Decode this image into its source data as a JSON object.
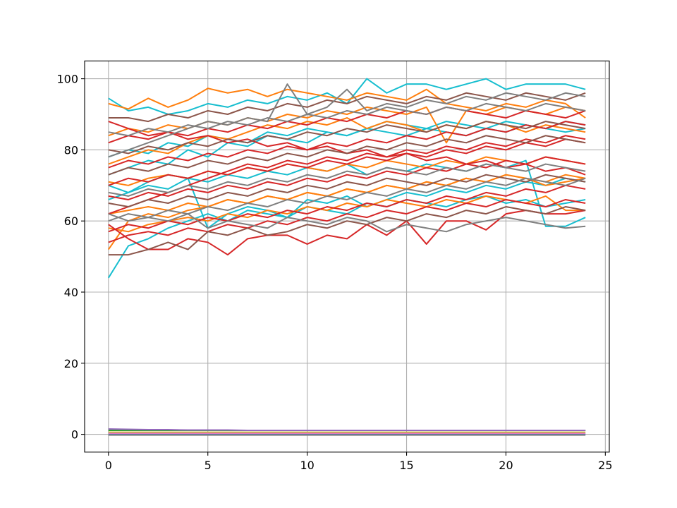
{
  "chart_data": {
    "type": "line",
    "title": "",
    "xlabel": "",
    "ylabel": "",
    "xlim": [
      -1.2,
      25.2
    ],
    "ylim": [
      -5,
      105
    ],
    "x_ticks": [
      0,
      5,
      10,
      15,
      20,
      25
    ],
    "y_ticks": [
      0,
      20,
      40,
      60,
      80,
      100
    ],
    "grid": true,
    "legend": "none",
    "x": [
      0,
      1,
      2,
      3,
      4,
      5,
      6,
      7,
      8,
      9,
      10,
      11,
      12,
      13,
      14,
      15,
      16,
      17,
      18,
      19,
      20,
      21,
      22,
      23,
      24
    ],
    "series": [
      {
        "color": "#17becf",
        "values": [
          44,
          53,
          55,
          58,
          60,
          62,
          60,
          63,
          62,
          61,
          64,
          63,
          62,
          65,
          64,
          66,
          65,
          64,
          66,
          67,
          65,
          66,
          64,
          65,
          66
        ]
      },
      {
        "color": "#17becf",
        "values": [
          94.5,
          91,
          92,
          90,
          91,
          93,
          92,
          94,
          93,
          95,
          94,
          96,
          93,
          100,
          96,
          98.5,
          98.5,
          97,
          98.5,
          100,
          97,
          98.5,
          98.5,
          98.5,
          97
        ]
      },
      {
        "color": "#17becf",
        "values": [
          73,
          75,
          77,
          76,
          80,
          78,
          82,
          81,
          84,
          83,
          82,
          85,
          84,
          86,
          85,
          84,
          86,
          85,
          84,
          86,
          85,
          87,
          86,
          85,
          86
        ]
      },
      {
        "color": "#17becf",
        "values": [
          66,
          68,
          70,
          69,
          72,
          71,
          73,
          72,
          74,
          73,
          75,
          74,
          76,
          73,
          75,
          74,
          76,
          75,
          74,
          76,
          75,
          77,
          58.5,
          58.5,
          61
        ]
      },
      {
        "color": "#17becf",
        "values": [
          78,
          80,
          79,
          82,
          81,
          84,
          83,
          82,
          85,
          84,
          86,
          85,
          84,
          86,
          88,
          87,
          86,
          88,
          87,
          86,
          88,
          87,
          86,
          88,
          87
        ]
      },
      {
        "color": "#17becf",
        "values": [
          70,
          68,
          71,
          73,
          72,
          58,
          62,
          64,
          63,
          61,
          66,
          65,
          67,
          64,
          66,
          68,
          67,
          69,
          68,
          70,
          69,
          71,
          70,
          72,
          71
        ]
      },
      {
        "color": "#ff7f0e",
        "values": [
          93,
          91.5,
          94.5,
          92,
          94,
          97.3,
          96,
          97,
          95,
          97,
          96,
          95,
          94,
          96,
          95,
          94,
          97,
          93,
          92,
          91,
          93,
          92,
          94,
          93,
          89
        ]
      },
      {
        "color": "#ff7f0e",
        "values": [
          76,
          78,
          80,
          79,
          82,
          84,
          83,
          85,
          87,
          86,
          88,
          87,
          89,
          86,
          88,
          87,
          85,
          87,
          86,
          88,
          87,
          85,
          87,
          86,
          85
        ]
      },
      {
        "color": "#ff7f0e",
        "values": [
          52,
          60,
          62,
          61,
          63,
          64,
          66,
          65,
          67,
          66,
          68,
          67,
          69,
          68,
          70,
          69,
          71,
          70,
          72,
          71,
          73,
          72,
          70,
          71,
          72
        ]
      },
      {
        "color": "#ff7f0e",
        "values": [
          62,
          63,
          64,
          63,
          65,
          64,
          66,
          65,
          67,
          66,
          68,
          67,
          69,
          68,
          70,
          69,
          71,
          70,
          72,
          71,
          73,
          72,
          71,
          73,
          72
        ]
      },
      {
        "color": "#ff7f0e",
        "values": [
          84,
          86,
          85,
          87,
          86,
          88,
          87,
          89,
          88,
          90,
          89,
          91,
          90,
          92,
          91,
          90,
          92,
          82,
          91,
          90,
          92,
          91,
          90,
          92,
          91
        ]
      },
      {
        "color": "#ff7f0e",
        "values": [
          58,
          57,
          59,
          60,
          61,
          60,
          62,
          61,
          63,
          62,
          64,
          63,
          65,
          64,
          66,
          65,
          64,
          66,
          65,
          67,
          66,
          65,
          67,
          63,
          63
        ]
      },
      {
        "color": "#ff7f0e",
        "values": [
          71,
          70,
          72,
          73,
          72,
          74,
          73,
          75,
          74,
          76,
          75,
          74,
          76,
          75,
          77,
          76,
          75,
          77,
          76,
          78,
          77,
          76,
          78,
          77,
          76
        ]
      },
      {
        "color": "#d62728",
        "values": [
          88,
          86,
          84,
          85,
          83,
          84,
          82,
          83,
          81,
          82,
          80,
          81,
          79,
          80,
          78,
          79,
          77,
          78,
          76,
          77,
          75,
          76,
          74,
          75,
          73
        ]
      },
      {
        "color": "#d62728",
        "values": [
          59,
          55,
          52,
          52,
          55,
          54,
          50.5,
          55,
          56,
          56,
          53.5,
          56,
          55,
          59,
          56,
          60,
          53.5,
          60,
          60,
          57.5,
          62,
          63,
          62,
          62,
          63
        ]
      },
      {
        "color": "#d62728",
        "values": [
          54,
          56,
          57,
          56,
          58,
          57,
          59,
          58,
          60,
          59,
          61,
          60,
          62,
          61,
          63,
          62,
          64,
          63,
          65,
          64,
          66,
          65,
          64,
          66,
          65
        ]
      },
      {
        "color": "#d62728",
        "values": [
          62,
          64,
          66,
          68,
          70,
          72,
          74,
          76,
          75,
          77,
          76,
          78,
          77,
          79,
          78,
          80,
          79,
          81,
          80,
          82,
          81,
          83,
          82,
          84,
          83
        ]
      },
      {
        "color": "#d62728",
        "values": [
          82,
          84,
          83,
          85,
          84,
          86,
          85,
          87,
          86,
          88,
          87,
          89,
          88,
          90,
          89,
          91,
          90,
          92,
          91,
          90,
          89,
          91,
          90,
          89,
          91
        ]
      },
      {
        "color": "#d62728",
        "values": [
          67,
          66,
          68,
          67,
          69,
          68,
          70,
          69,
          71,
          70,
          72,
          71,
          73,
          72,
          74,
          73,
          75,
          74,
          76,
          75,
          77,
          76,
          78,
          77,
          76
        ]
      },
      {
        "color": "#d62728",
        "values": [
          75,
          77,
          76,
          78,
          77,
          79,
          78,
          80,
          79,
          81,
          80,
          82,
          81,
          83,
          82,
          84,
          83,
          85,
          84,
          86,
          85,
          87,
          86,
          88,
          87
        ]
      },
      {
        "color": "#d62728",
        "values": [
          70,
          72,
          71,
          73,
          72,
          74,
          73,
          75,
          74,
          76,
          75,
          77,
          76,
          78,
          77,
          79,
          78,
          80,
          79,
          81,
          80,
          82,
          81,
          83,
          82
        ]
      },
      {
        "color": "#d62728",
        "values": [
          57,
          59,
          58,
          60,
          59,
          61,
          60,
          62,
          61,
          63,
          62,
          64,
          63,
          65,
          64,
          66,
          65,
          67,
          66,
          68,
          67,
          69,
          68,
          70,
          69
        ]
      },
      {
        "color": "#8c564b",
        "values": [
          89,
          89,
          88,
          90,
          89,
          91,
          90,
          92,
          91,
          93,
          92,
          94,
          93,
          95,
          94,
          93,
          95,
          94,
          96,
          95,
          94,
          96,
          95,
          94,
          96
        ]
      },
      {
        "color": "#8c564b",
        "values": [
          50.5,
          50.5,
          52,
          54,
          52,
          57,
          56,
          58,
          56,
          57,
          59,
          58,
          60,
          59,
          61,
          60,
          62,
          61,
          63,
          62,
          64,
          63,
          62,
          64,
          63
        ]
      },
      {
        "color": "#8c564b",
        "values": [
          80,
          79,
          81,
          80,
          82,
          81,
          83,
          82,
          84,
          83,
          85,
          84,
          86,
          85,
          87,
          86,
          85,
          87,
          86,
          88,
          87,
          86,
          88,
          87,
          86
        ]
      },
      {
        "color": "#8c564b",
        "values": [
          65,
          64,
          66,
          65,
          67,
          66,
          68,
          67,
          69,
          68,
          70,
          69,
          71,
          70,
          72,
          71,
          70,
          72,
          71,
          73,
          72,
          71,
          73,
          72,
          71
        ]
      },
      {
        "color": "#8c564b",
        "values": [
          73,
          75,
          74,
          76,
          75,
          77,
          76,
          78,
          77,
          79,
          78,
          80,
          79,
          81,
          80,
          82,
          81,
          83,
          82,
          84,
          83,
          82,
          84,
          83,
          82
        ]
      },
      {
        "color": "#7f7f7f",
        "values": [
          78,
          80,
          82,
          84,
          86,
          88,
          87,
          89,
          88,
          98.5,
          90,
          92,
          97,
          91,
          93,
          92,
          94,
          93,
          95,
          94,
          96,
          95,
          94,
          96,
          95
        ]
      },
      {
        "color": "#7f7f7f",
        "values": [
          60,
          62,
          61,
          63,
          62,
          64,
          63,
          65,
          64,
          66,
          65,
          67,
          66,
          68,
          67,
          69,
          68,
          70,
          69,
          71,
          70,
          72,
          71,
          70,
          72
        ]
      },
      {
        "color": "#7f7f7f",
        "values": [
          85,
          84,
          86,
          85,
          87,
          86,
          88,
          87,
          89,
          88,
          90,
          89,
          91,
          90,
          92,
          91,
          90,
          92,
          91,
          93,
          92,
          91,
          93,
          92,
          91
        ]
      },
      {
        "color": "#7f7f7f",
        "values": [
          68,
          67,
          69,
          68,
          70,
          69,
          71,
          70,
          72,
          71,
          73,
          72,
          74,
          73,
          75,
          74,
          73,
          75,
          74,
          76,
          75,
          74,
          76,
          75,
          74
        ]
      },
      {
        "color": "#7f7f7f",
        "values": [
          62,
          60,
          61,
          60,
          62,
          58,
          60,
          59,
          58,
          61,
          60,
          59,
          61,
          60,
          57,
          59,
          58,
          57,
          59,
          60,
          61,
          60,
          59,
          58,
          58.5
        ]
      },
      {
        "color": "#1f77b4",
        "values": [
          0,
          0,
          0,
          0,
          0,
          0,
          0,
          0,
          0,
          0,
          0,
          0,
          0,
          0,
          0,
          0,
          0,
          0,
          0,
          0,
          0,
          0,
          0,
          0,
          0
        ]
      },
      {
        "color": "#2ca02c",
        "values": [
          1.1,
          1.1,
          1.1,
          1.1,
          1.1,
          1.1,
          1.1,
          1.1,
          1.1,
          1.1,
          1.1,
          1.1,
          1.1,
          1.1,
          1.1,
          1.1,
          1.1,
          1.1,
          1.1,
          1.1,
          1.1,
          1.1,
          1.1,
          1.1,
          1.1
        ]
      },
      {
        "color": "#bcbd22",
        "values": [
          0.6,
          0.6,
          0.6,
          0.6,
          0.6,
          0.6,
          0.6,
          0.6,
          0.6,
          0.6,
          0.6,
          0.6,
          0.6,
          0.6,
          0.6,
          0.6,
          0.6,
          0.6,
          0.6,
          0.6,
          0.6,
          0.6,
          0.6,
          0.6,
          0.6
        ]
      },
      {
        "color": "#9467bd",
        "values": [
          1.5,
          1.4,
          1.3,
          1.3,
          1.2,
          1.2,
          1.2,
          1.1,
          1.1,
          1.1,
          1.1,
          1.1,
          1.1,
          1.1,
          1.1,
          1.1,
          1.1,
          1.1,
          1.1,
          1.1,
          1.1,
          1.1,
          1.1,
          1.1,
          1.1
        ]
      },
      {
        "color": "#e377c2",
        "values": [
          0.3,
          0.3,
          0.3,
          0.3,
          0.3,
          0.3,
          0.3,
          0.3,
          0.3,
          0.3,
          0.3,
          0.3,
          0.3,
          0.3,
          0.3,
          0.3,
          0.3,
          0.3,
          0.3,
          0.3,
          0.3,
          0.3,
          0.3,
          0.3,
          0.3
        ]
      },
      {
        "color": "#7f7f7f",
        "values": [
          -0.2,
          -0.2,
          -0.2,
          -0.2,
          -0.2,
          -0.2,
          -0.2,
          -0.2,
          -0.2,
          -0.2,
          -0.2,
          -0.2,
          -0.2,
          -0.2,
          -0.2,
          -0.2,
          -0.2,
          -0.2,
          -0.2,
          -0.2,
          -0.2,
          -0.2,
          -0.2,
          -0.2,
          -0.2
        ]
      }
    ]
  }
}
